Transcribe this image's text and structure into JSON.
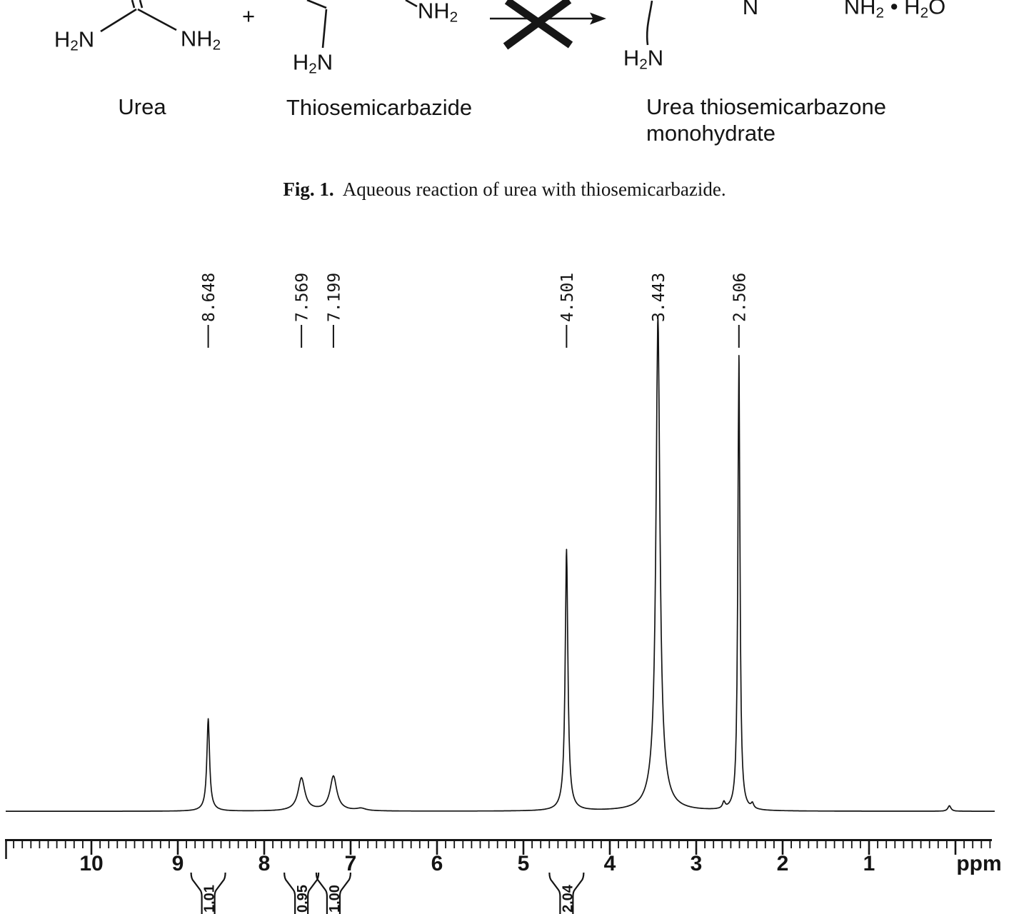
{
  "scheme": {
    "urea": {
      "left_group": "H2N",
      "right_group": "NH2",
      "name": "Urea"
    },
    "plus_sign": "+",
    "thiosemicarbazide": {
      "bottom_group": "H2N",
      "right_group": "NH2",
      "name": "Thiosemicarbazide"
    },
    "product": {
      "left_group": "H2N",
      "imine_n": "N",
      "right_group": "NH2 • H2O",
      "name_line1": "Urea thiosemicarbazone",
      "name_line2": "monohydrate"
    }
  },
  "caption": {
    "label": "Fig. 1.",
    "text": "Aqueous reaction of urea with thiosemicarbazide."
  },
  "chart_data": {
    "type": "line",
    "description": "1H NMR spectrum of reaction product",
    "xlabel": "ppm",
    "grid": false,
    "legend": false,
    "x_axis": {
      "unit": "ppm",
      "min": -0.45,
      "max": 11.0,
      "direction": "reversed",
      "major_ticks": [
        10,
        9,
        8,
        7,
        6,
        5,
        4,
        3,
        2,
        1,
        0
      ],
      "major_tick_labels": [
        "10",
        "9",
        "8",
        "7",
        "6",
        "5",
        "4",
        "3",
        "2",
        "1",
        ""
      ],
      "minor_tick_interval": 0.1
    },
    "peaks": [
      {
        "label": "8.648",
        "ppm": 8.648,
        "rel_height": 0.19,
        "hwhm_ppm": 0.018,
        "base_rel_height": 0.012,
        "base_hwhm_ppm": 0.058,
        "integration": "1.01"
      },
      {
        "label": "7.569",
        "ppm": 7.569,
        "rel_height": 0.066,
        "hwhm_ppm": 0.045,
        "base_rel_height": 0.006,
        "base_hwhm_ppm": 0.099,
        "integration": "0.95"
      },
      {
        "label": "7.199",
        "ppm": 7.199,
        "rel_height": 0.07,
        "hwhm_ppm": 0.045,
        "base_rel_height": 0.006,
        "base_hwhm_ppm": 0.099,
        "integration": "1.00"
      },
      {
        "label": "4.501",
        "ppm": 4.501,
        "rel_height": 0.552,
        "hwhm_ppm": 0.018,
        "base_rel_height": 0.019,
        "base_hwhm_ppm": 0.058,
        "integration": "2.04"
      },
      {
        "label": "3.443",
        "ppm": 3.443,
        "rel_height": 1.0,
        "hwhm_ppm": 0.026,
        "base_rel_height": 0.081,
        "base_hwhm_ppm": 0.091,
        "integration": null
      },
      {
        "label": "2.506",
        "ppm": 2.506,
        "rel_height": 0.983,
        "hwhm_ppm": 0.014,
        "base_rel_height": 0.011,
        "base_hwhm_ppm": 0.041,
        "integration": null
      }
    ],
    "minor_peaks": [
      {
        "ppm": 6.88,
        "rel_height": 0.005,
        "hwhm_ppm": 0.066
      },
      {
        "ppm": 2.68,
        "rel_height": 0.014,
        "hwhm_ppm": 0.017
      },
      {
        "ppm": 2.35,
        "rel_height": 0.011,
        "hwhm_ppm": 0.017
      },
      {
        "ppm": 0.07,
        "rel_height": 0.012,
        "hwhm_ppm": 0.021
      }
    ]
  }
}
